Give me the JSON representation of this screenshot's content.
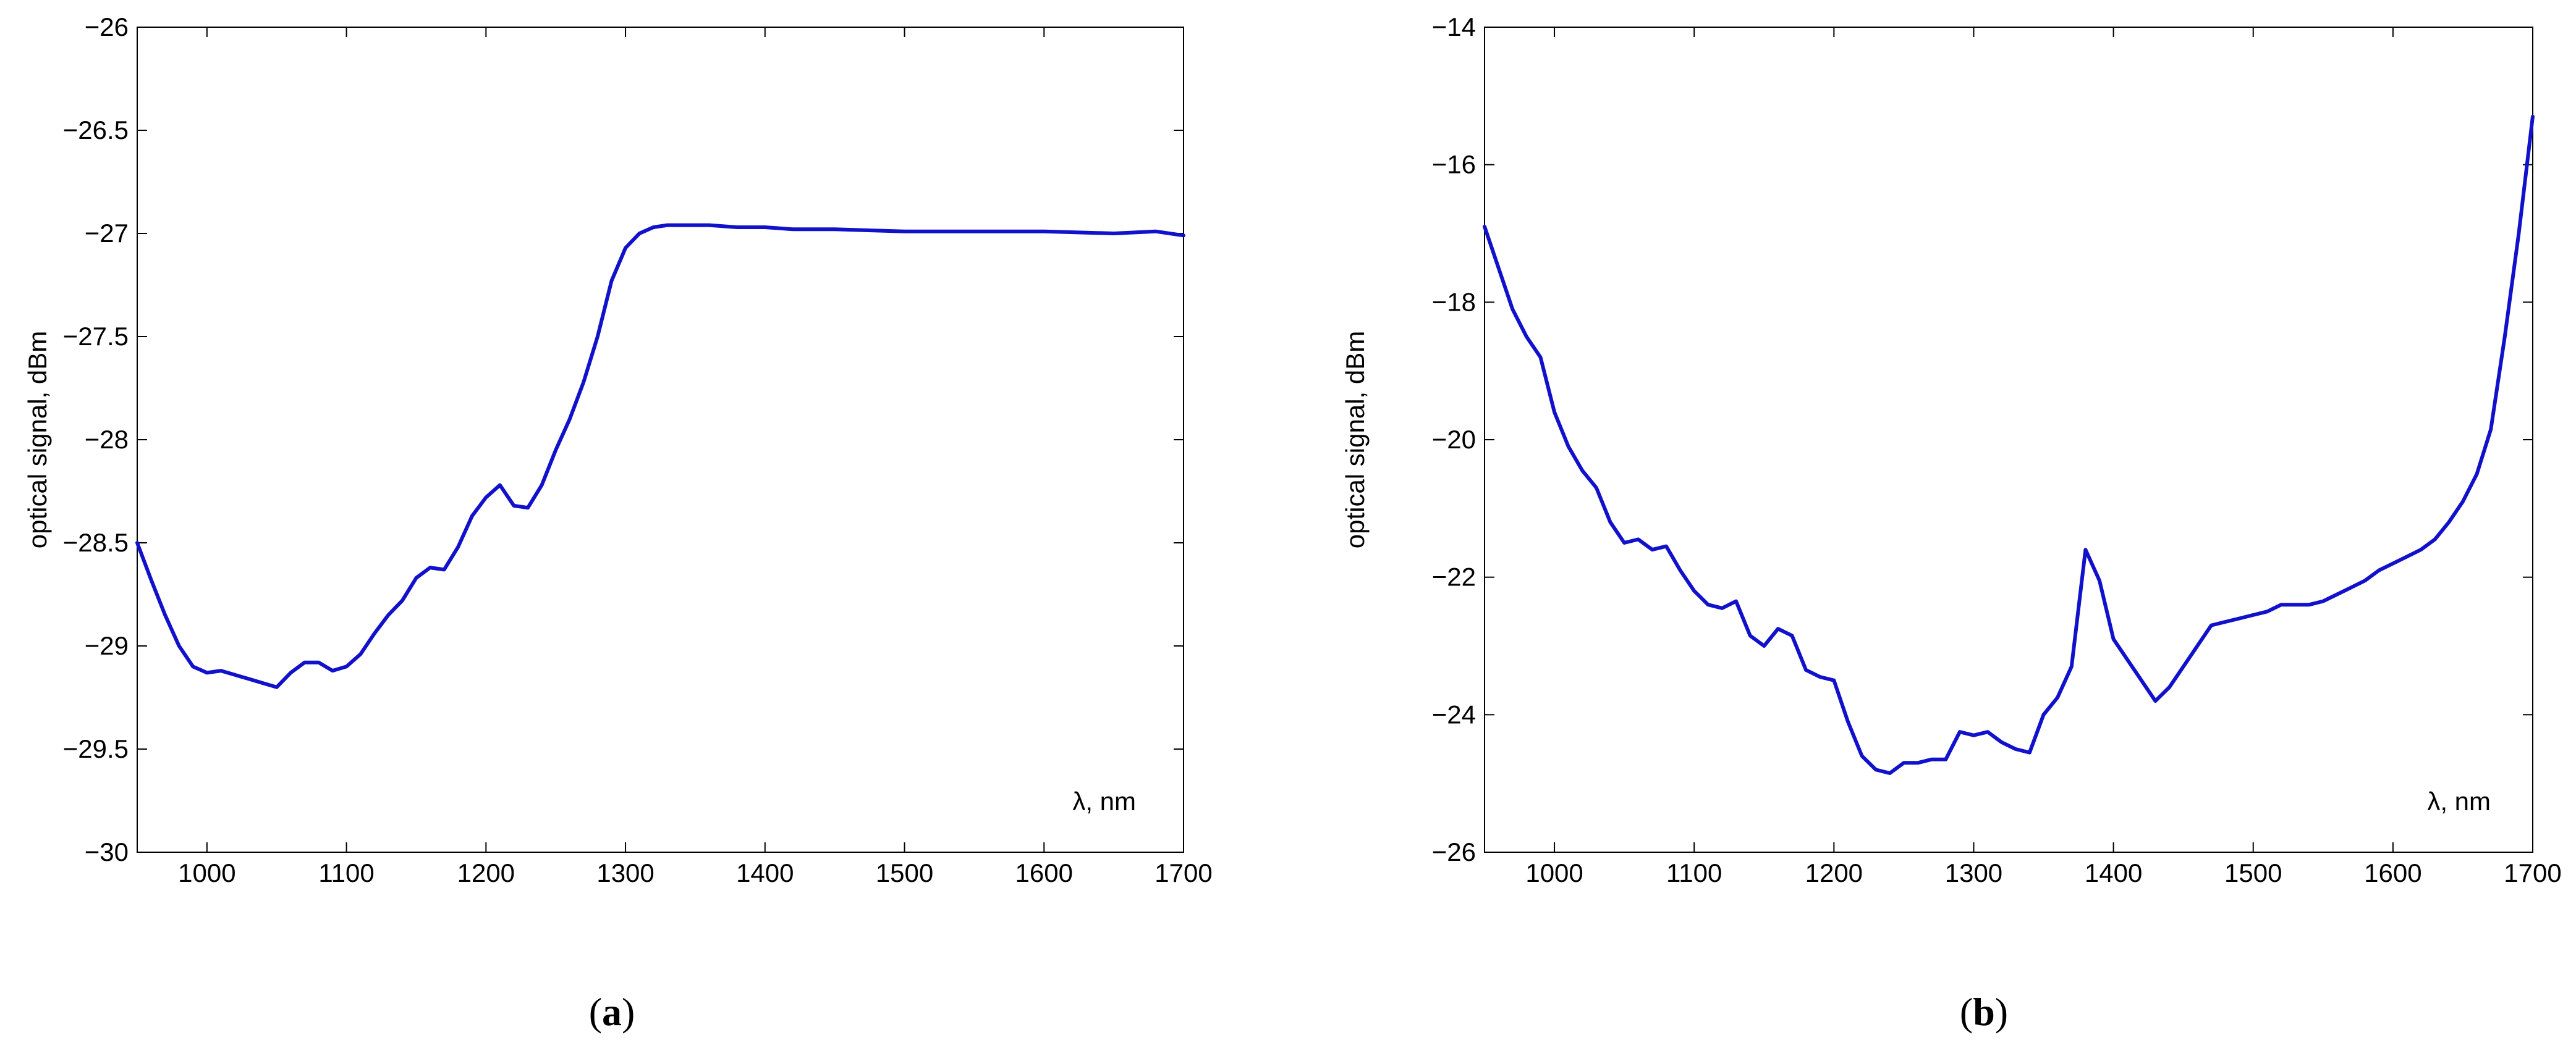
{
  "chart_data": [
    {
      "type": "line",
      "panel_label": "a",
      "ylabel": "optical signal, dBm",
      "annotation": "λ, nm",
      "xlim": [
        950,
        1700
      ],
      "ylim": [
        -30,
        -26
      ],
      "x_ticks": [
        1000,
        1100,
        1200,
        1300,
        1400,
        1500,
        1600,
        1700
      ],
      "x_tick_labels": [
        "1000",
        "1100",
        "1200",
        "1300",
        "1400",
        "1500",
        "1600",
        "1700"
      ],
      "y_ticks": [
        -30,
        -29.5,
        -29,
        -28.5,
        -28,
        -27.5,
        -27,
        -26.5,
        -26
      ],
      "y_tick_labels": [
        "−30",
        "−29.5",
        "−29",
        "−28.5",
        "−28",
        "−27.5",
        "−27",
        "−26.5",
        "−26"
      ],
      "grid": false,
      "line_color": "#1111cc",
      "series": [
        {
          "x": [
            950,
            960,
            970,
            980,
            990,
            1000,
            1010,
            1020,
            1030,
            1040,
            1050,
            1060,
            1070,
            1080,
            1090,
            1100,
            1110,
            1120,
            1130,
            1140,
            1150,
            1160,
            1170,
            1180,
            1190,
            1200,
            1210,
            1220,
            1230,
            1240,
            1250,
            1260,
            1270,
            1280,
            1290,
            1300,
            1310,
            1320,
            1330,
            1340,
            1350,
            1360,
            1380,
            1400,
            1420,
            1450,
            1500,
            1550,
            1600,
            1650,
            1680,
            1700
          ],
          "values": [
            -28.5,
            -28.68,
            -28.85,
            -29.0,
            -29.1,
            -29.13,
            -29.12,
            -29.14,
            -29.16,
            -29.18,
            -29.2,
            -29.13,
            -29.08,
            -29.08,
            -29.12,
            -29.1,
            -29.04,
            -28.94,
            -28.85,
            -28.78,
            -28.67,
            -28.62,
            -28.63,
            -28.52,
            -28.37,
            -28.28,
            -28.22,
            -28.32,
            -28.33,
            -28.22,
            -28.05,
            -27.9,
            -27.72,
            -27.5,
            -27.23,
            -27.07,
            -27.0,
            -26.97,
            -26.96,
            -26.96,
            -26.96,
            -26.96,
            -26.97,
            -26.97,
            -26.98,
            -26.98,
            -26.99,
            -26.99,
            -26.99,
            -27.0,
            -26.99,
            -27.01
          ]
        }
      ]
    },
    {
      "type": "line",
      "panel_label": "b",
      "ylabel": "optical signal, dBm",
      "annotation": "λ, nm",
      "xlim": [
        950,
        1700
      ],
      "ylim": [
        -26,
        -14
      ],
      "x_ticks": [
        1000,
        1100,
        1200,
        1300,
        1400,
        1500,
        1600,
        1700
      ],
      "x_tick_labels": [
        "1000",
        "1100",
        "1200",
        "1300",
        "1400",
        "1500",
        "1600",
        "1700"
      ],
      "y_ticks": [
        -26,
        -24,
        -22,
        -20,
        -18,
        -16,
        -14
      ],
      "y_tick_labels": [
        "−26",
        "−24",
        "−22",
        "−20",
        "−18",
        "−16",
        "−14"
      ],
      "grid": false,
      "line_color": "#1111cc",
      "series": [
        {
          "x": [
            950,
            960,
            970,
            980,
            990,
            1000,
            1010,
            1020,
            1030,
            1040,
            1050,
            1060,
            1070,
            1080,
            1090,
            1100,
            1110,
            1120,
            1130,
            1140,
            1150,
            1160,
            1170,
            1180,
            1190,
            1200,
            1210,
            1220,
            1230,
            1240,
            1250,
            1260,
            1270,
            1280,
            1290,
            1300,
            1310,
            1320,
            1330,
            1340,
            1350,
            1360,
            1370,
            1380,
            1390,
            1400,
            1410,
            1420,
            1430,
            1440,
            1450,
            1460,
            1470,
            1480,
            1490,
            1500,
            1510,
            1520,
            1530,
            1540,
            1550,
            1560,
            1570,
            1580,
            1590,
            1600,
            1610,
            1620,
            1630,
            1640,
            1650,
            1660,
            1670,
            1680,
            1690,
            1700
          ],
          "values": [
            -16.9,
            -17.5,
            -18.1,
            -18.5,
            -18.8,
            -19.6,
            -20.1,
            -20.45,
            -20.7,
            -21.2,
            -21.5,
            -21.45,
            -21.6,
            -21.55,
            -21.9,
            -22.2,
            -22.4,
            -22.45,
            -22.35,
            -22.85,
            -23.0,
            -22.75,
            -22.85,
            -23.35,
            -23.45,
            -23.5,
            -24.1,
            -24.6,
            -24.8,
            -24.85,
            -24.7,
            -24.7,
            -24.65,
            -24.65,
            -24.25,
            -24.3,
            -24.25,
            -24.4,
            -24.5,
            -24.55,
            -24.0,
            -23.75,
            -23.3,
            -21.6,
            -22.05,
            -22.9,
            -23.2,
            -23.5,
            -23.8,
            -23.6,
            -23.3,
            -23.0,
            -22.7,
            -22.65,
            -22.6,
            -22.55,
            -22.5,
            -22.4,
            -22.4,
            -22.4,
            -22.35,
            -22.25,
            -22.15,
            -22.05,
            -21.9,
            -21.8,
            -21.7,
            -21.6,
            -21.45,
            -21.2,
            -20.9,
            -20.5,
            -19.85,
            -18.5,
            -17.0,
            -15.3
          ]
        }
      ]
    }
  ]
}
